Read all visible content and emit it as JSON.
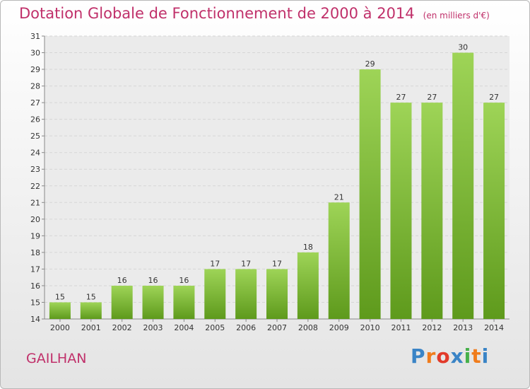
{
  "title": "Dotation Globale de Fonctionnement de 2000 à 2014",
  "subtitle": "(en milliers d'€)",
  "commune": "GAILHAN",
  "logo": {
    "text": "Proxiti",
    "letters": [
      "P",
      "r",
      "o",
      "x",
      "i",
      "t",
      "i"
    ],
    "letter_colors": [
      "#3a84c6",
      "#f07c1c",
      "#e23a2a",
      "#3a84c6",
      "#46b04a",
      "#f07c1c",
      "#3a84c6"
    ]
  },
  "colors": {
    "bar_light": "#9ed457",
    "bar_dark": "#5e9a1c",
    "text_accent": "#c0306a"
  },
  "chart_data": {
    "type": "bar",
    "title": "Dotation Globale de Fonctionnement de 2000 à 2014",
    "subtitle": "(en milliers d'€)",
    "categories": [
      "2000",
      "2001",
      "2002",
      "2003",
      "2004",
      "2005",
      "2006",
      "2007",
      "2008",
      "2009",
      "2010",
      "2011",
      "2012",
      "2013",
      "2014"
    ],
    "values": [
      15,
      15,
      16,
      16,
      16,
      17,
      17,
      17,
      18,
      21,
      29,
      27,
      27,
      30,
      27
    ],
    "ylim": [
      14,
      31
    ],
    "yticks": [
      14,
      15,
      16,
      17,
      18,
      19,
      20,
      21,
      22,
      23,
      24,
      25,
      26,
      27,
      28,
      29,
      30,
      31
    ],
    "grid": true,
    "data_labels": true,
    "xlabel": "",
    "ylabel": ""
  }
}
